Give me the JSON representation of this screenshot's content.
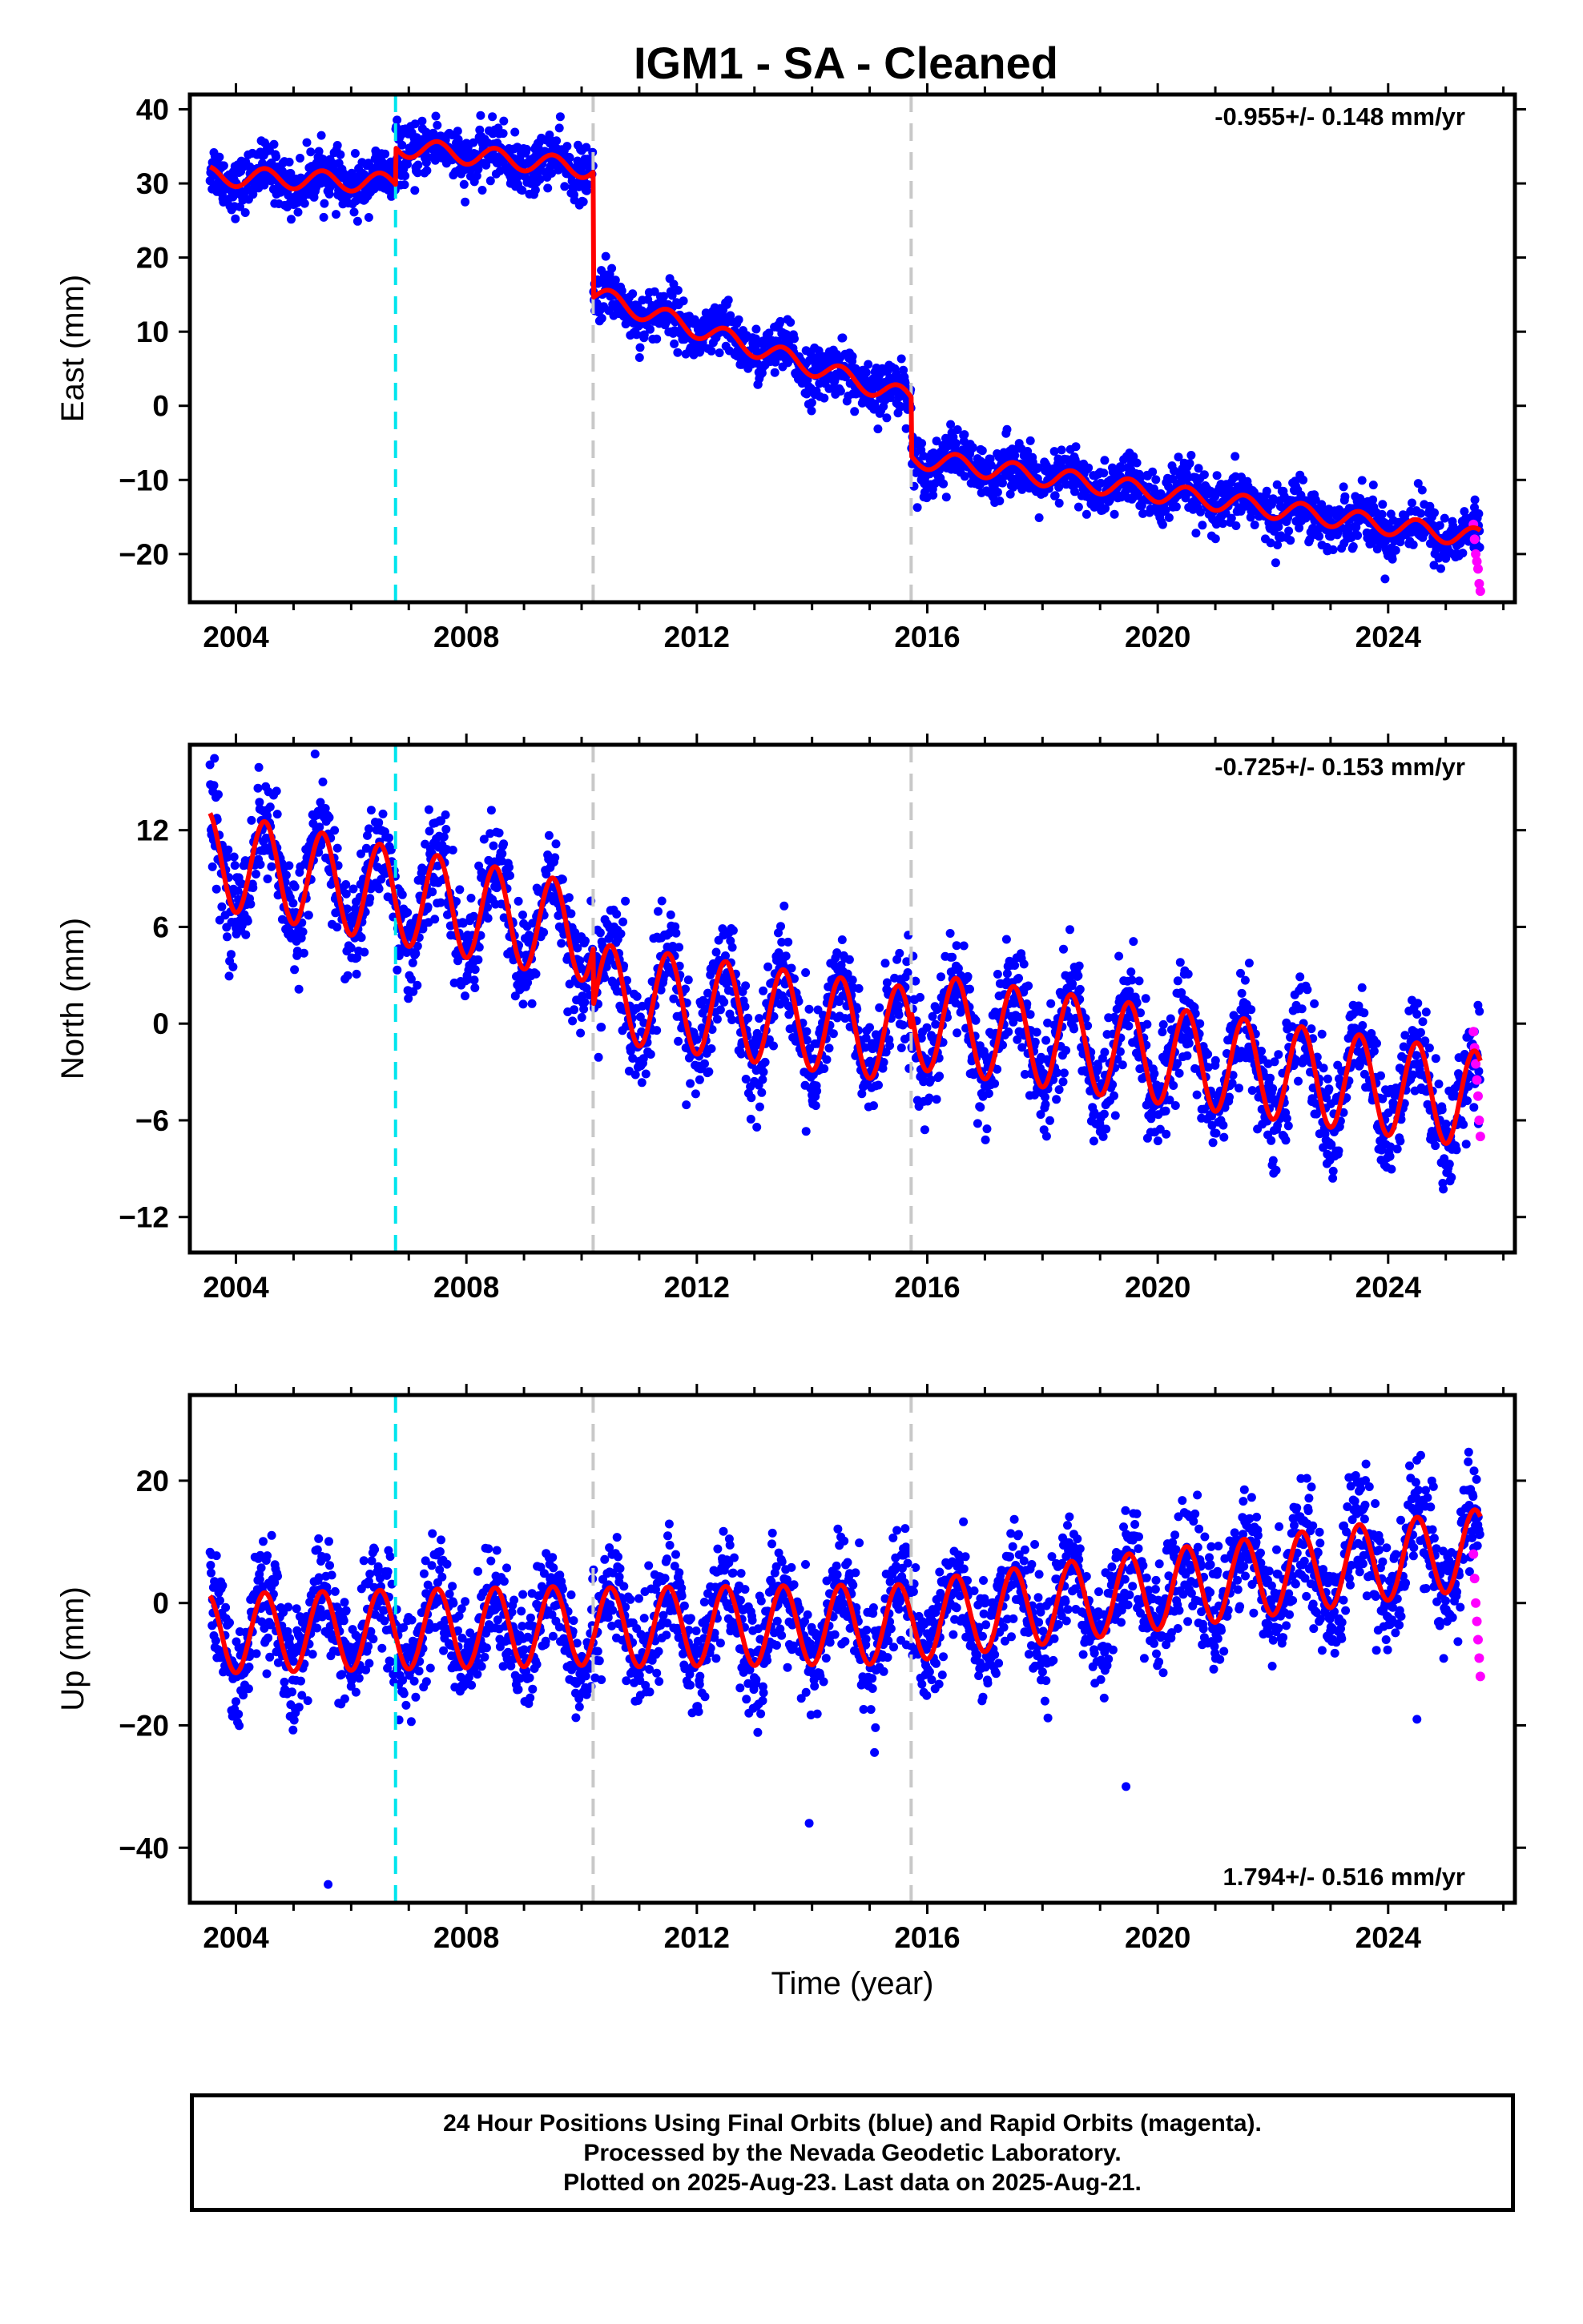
{
  "title": "IGM1  - SA - Cleaned",
  "colors": {
    "final_orbits": "#0000ff",
    "rapid_orbits": "#ff00ff",
    "model_fit": "#ff0000",
    "equipment_change": "#00e5ee",
    "other_offset": "#c8c8c8"
  },
  "footer": {
    "line1": "24 Hour Positions Using Final Orbits (blue) and Rapid Orbits (magenta).",
    "line2": "Processed by the Nevada Geodetic Laboratory.",
    "line3": "Plotted on 2025-Aug-23. Last data on 2025-Aug-21."
  },
  "chart_data": [
    {
      "type": "scatter",
      "component": "east",
      "ylabel": "East (mm)",
      "xlabel": "",
      "xlim": [
        2003.2,
        2026.2
      ],
      "ylim": [
        -26.5,
        42
      ],
      "xticks": [
        2004,
        2008,
        2012,
        2016,
        2020,
        2024
      ],
      "xtick_labels": [
        "2004",
        "2008",
        "2012",
        "2016",
        "2020",
        "2024"
      ],
      "yticks": [
        -20,
        -10,
        0,
        10,
        20,
        30,
        40
      ],
      "ytick_labels": [
        "−20",
        "−10",
        "0",
        "10",
        "20",
        "30",
        "40"
      ],
      "rate_label": "-0.955+/- 0.148 mm/yr",
      "rate_position": "top-right",
      "vlines": [
        {
          "x": 2006.77,
          "kind": "equipment_change"
        },
        {
          "x": 2010.2,
          "kind": "other_offset"
        },
        {
          "x": 2015.72,
          "kind": "other_offset"
        }
      ],
      "model": {
        "segments": [
          {
            "start": 2003.55,
            "end": 2006.77,
            "y_start": 31.0,
            "slope": -0.3
          },
          {
            "start": 2006.77,
            "end": 2010.2,
            "y_start": 35.0,
            "slope": -0.9
          },
          {
            "start": 2010.2,
            "end": 2015.72,
            "y_start": 15.0,
            "slope": -2.55
          },
          {
            "start": 2015.72,
            "end": 2025.6,
            "y_start": -7.0,
            "slope": -1.1
          }
        ],
        "seasonal_amplitude": 1.3
      },
      "scatter_sigma": 1.8,
      "rapid_orbit_points": [
        {
          "x": 2025.48,
          "y": -16
        },
        {
          "x": 2025.5,
          "y": -18
        },
        {
          "x": 2025.52,
          "y": -20
        },
        {
          "x": 2025.54,
          "y": -21
        },
        {
          "x": 2025.56,
          "y": -22
        },
        {
          "x": 2025.58,
          "y": -24
        },
        {
          "x": 2025.6,
          "y": -25
        }
      ]
    },
    {
      "type": "scatter",
      "component": "north",
      "ylabel": "North (mm)",
      "xlabel": "",
      "xlim": [
        2003.2,
        2026.2
      ],
      "ylim": [
        -14.2,
        17.3
      ],
      "xticks": [
        2004,
        2008,
        2012,
        2016,
        2020,
        2024
      ],
      "xtick_labels": [
        "2004",
        "2008",
        "2012",
        "2016",
        "2020",
        "2024"
      ],
      "yticks": [
        -12,
        -6,
        0,
        6,
        12
      ],
      "ytick_labels": [
        "−12",
        "−6",
        "0",
        "6",
        "12"
      ],
      "rate_label": "-0.725+/- 0.153 mm/yr",
      "rate_position": "top-right",
      "vlines": [
        {
          "x": 2006.77,
          "kind": "equipment_change"
        },
        {
          "x": 2010.2,
          "kind": "other_offset"
        },
        {
          "x": 2015.72,
          "kind": "other_offset"
        }
      ],
      "model": {
        "segments": [
          {
            "start": 2003.55,
            "end": 2010.2,
            "y_start": 10.2,
            "slope": -0.7
          },
          {
            "start": 2010.2,
            "end": 2015.72,
            "y_start": 2.0,
            "slope": -0.5
          },
          {
            "start": 2015.72,
            "end": 2025.6,
            "y_start": 0.2,
            "slope": -0.5
          }
        ],
        "seasonal_amplitude": 3.0
      },
      "scatter_sigma": 1.6,
      "rapid_orbit_points": [
        {
          "x": 2025.48,
          "y": -0.5
        },
        {
          "x": 2025.5,
          "y": -1.5
        },
        {
          "x": 2025.52,
          "y": -2.5
        },
        {
          "x": 2025.54,
          "y": -3.5
        },
        {
          "x": 2025.56,
          "y": -4.5
        },
        {
          "x": 2025.58,
          "y": -6.0
        },
        {
          "x": 2025.6,
          "y": -7.0
        }
      ]
    },
    {
      "type": "scatter",
      "component": "up",
      "ylabel": "Up (mm)",
      "xlabel": "Time (year)",
      "xlim": [
        2003.2,
        2026.2
      ],
      "ylim": [
        -49,
        34
      ],
      "xticks": [
        2004,
        2008,
        2012,
        2016,
        2020,
        2024
      ],
      "xtick_labels": [
        "2004",
        "2008",
        "2012",
        "2016",
        "2020",
        "2024"
      ],
      "yticks": [
        -40,
        -20,
        0,
        20
      ],
      "ytick_labels": [
        "−40",
        "−20",
        "0",
        "20"
      ],
      "rate_label": "1.794+/- 0.516 mm/yr",
      "rate_position": "bottom-right",
      "vlines": [
        {
          "x": 2006.77,
          "kind": "equipment_change"
        },
        {
          "x": 2010.2,
          "kind": "other_offset"
        },
        {
          "x": 2015.72,
          "kind": "other_offset"
        }
      ],
      "model": {
        "segments": [
          {
            "start": 2003.55,
            "end": 2010.2,
            "y_start": -5.0,
            "slope": 0.2
          },
          {
            "start": 2010.2,
            "end": 2015.72,
            "y_start": -4.0,
            "slope": 0.1
          },
          {
            "start": 2015.72,
            "end": 2025.6,
            "y_start": -3.0,
            "slope": 1.2
          }
        ],
        "seasonal_amplitude": 6.5
      },
      "scatter_sigma": 4.5,
      "rapid_orbit_points": [
        {
          "x": 2025.48,
          "y": 8
        },
        {
          "x": 2025.5,
          "y": 4
        },
        {
          "x": 2025.52,
          "y": 0
        },
        {
          "x": 2025.54,
          "y": -3
        },
        {
          "x": 2025.56,
          "y": -6
        },
        {
          "x": 2025.58,
          "y": -9
        },
        {
          "x": 2025.6,
          "y": -12
        }
      ],
      "outliers": [
        {
          "x": 2005.6,
          "y": -46
        },
        {
          "x": 2013.95,
          "y": -36
        },
        {
          "x": 2019.45,
          "y": -30
        },
        {
          "x": 2024.5,
          "y": -19
        }
      ]
    }
  ]
}
